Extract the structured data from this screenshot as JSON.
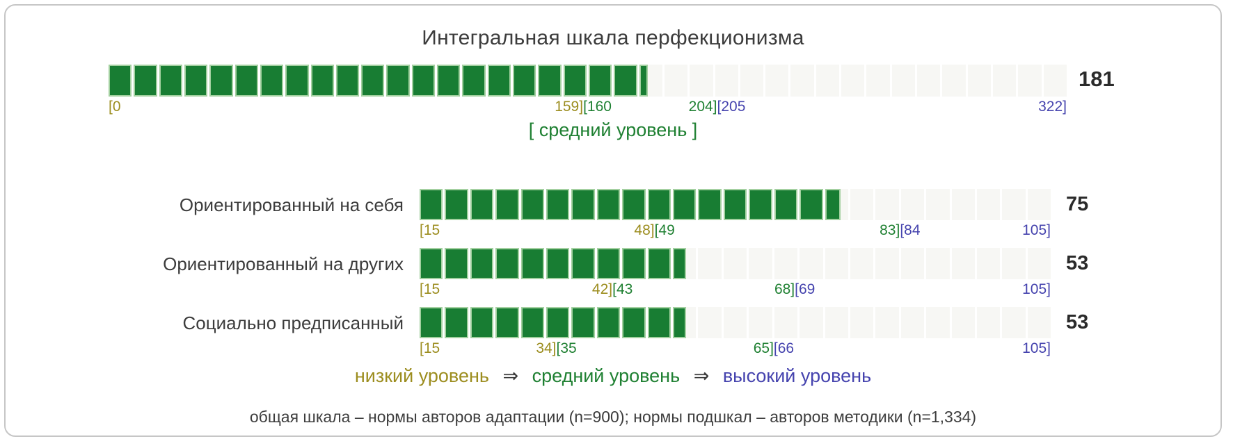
{
  "chart_data": {
    "type": "bar",
    "title": "Интегральная шкала перфекционизма",
    "overall": {
      "value": 181,
      "min": 0,
      "max": 322,
      "low_end": 159,
      "mid_start": 160,
      "mid_end": 204,
      "high_start": 205,
      "level_text": "[ средний уровень ]",
      "cells": 38
    },
    "subscales": [
      {
        "label": "Ориентированный на себя",
        "value": 75,
        "min": 15,
        "max": 105,
        "low_end": 48,
        "mid_start": 49,
        "mid_end": 83,
        "high_start": 84,
        "cells": 25
      },
      {
        "label": "Ориентированный на других",
        "value": 53,
        "min": 15,
        "max": 105,
        "low_end": 42,
        "mid_start": 43,
        "mid_end": 68,
        "high_start": 69,
        "cells": 25
      },
      {
        "label": "Социально предписанный",
        "value": 53,
        "min": 15,
        "max": 105,
        "low_end": 34,
        "mid_start": 35,
        "mid_end": 65,
        "high_start": 66,
        "cells": 25
      }
    ],
    "legend": {
      "low": "низкий уровень",
      "arrow": "⇒",
      "mid": "средний уровень",
      "high": "высокий уровень"
    },
    "footnote": "общая шкала – нормы авторов адаптации (n=900); нормы подшкал – авторов методики (n=1,334)",
    "colors": {
      "bar_fill": "#187d33",
      "bar_cell_border": "#a3d0a0",
      "bar_empty_cell": "#f7f7f4",
      "low_zone": "#9c8d1f",
      "mid_zone": "#1f8032",
      "high_zone": "#4543ae"
    }
  }
}
